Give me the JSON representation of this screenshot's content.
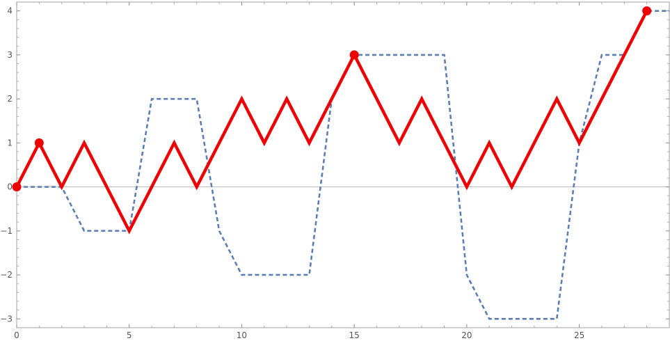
{
  "chart_data": {
    "type": "line",
    "title": "",
    "xlabel": "",
    "ylabel": "",
    "xlim": [
      0,
      29
    ],
    "ylim": [
      -3.2,
      4.2
    ],
    "x_ticks": [
      0,
      5,
      10,
      15,
      20,
      25
    ],
    "y_ticks": [
      -3,
      -2,
      -1,
      0,
      1,
      2,
      3,
      4
    ],
    "x_tick_labels": [
      "0",
      "5",
      "10",
      "15",
      "20",
      "25"
    ],
    "y_tick_labels": [
      "−3",
      "−2",
      "−1",
      "0",
      "1",
      "2",
      "3",
      "4"
    ],
    "grid": false,
    "series": [
      {
        "style": "solid",
        "color": "#ee0000",
        "x": [
          0,
          1,
          2,
          3,
          4,
          5,
          6,
          7,
          8,
          9,
          10,
          11,
          12,
          13,
          14,
          15,
          16,
          17,
          18,
          19,
          20,
          21,
          22,
          23,
          24,
          25,
          26,
          27,
          28
        ],
        "y": [
          0,
          1,
          0,
          1,
          0,
          -1,
          0,
          1,
          0,
          1,
          2,
          1,
          2,
          1,
          2,
          3,
          2,
          1,
          2,
          1,
          0,
          1,
          0,
          1,
          2,
          1,
          2,
          3,
          4
        ]
      },
      {
        "style": "dashed",
        "color": "#5b7fb5",
        "x": [
          0,
          1,
          2,
          3,
          4,
          5,
          6,
          7,
          8,
          9,
          10,
          11,
          12,
          13,
          14,
          15,
          16,
          17,
          18,
          19,
          20,
          21,
          22,
          23,
          24,
          25,
          26,
          27,
          28,
          29
        ],
        "y": [
          0,
          0,
          0,
          -1,
          -1,
          -1,
          2,
          2,
          2,
          -1,
          -2,
          -2,
          -2,
          -2,
          2,
          3,
          3,
          3,
          3,
          3,
          -2,
          -3,
          -3,
          -3,
          -3,
          1,
          3,
          3,
          4,
          4
        ]
      }
    ],
    "markers": {
      "color": "#ee0000",
      "x": [
        0,
        1,
        15,
        28
      ],
      "y": [
        0,
        1,
        3,
        4
      ]
    }
  }
}
